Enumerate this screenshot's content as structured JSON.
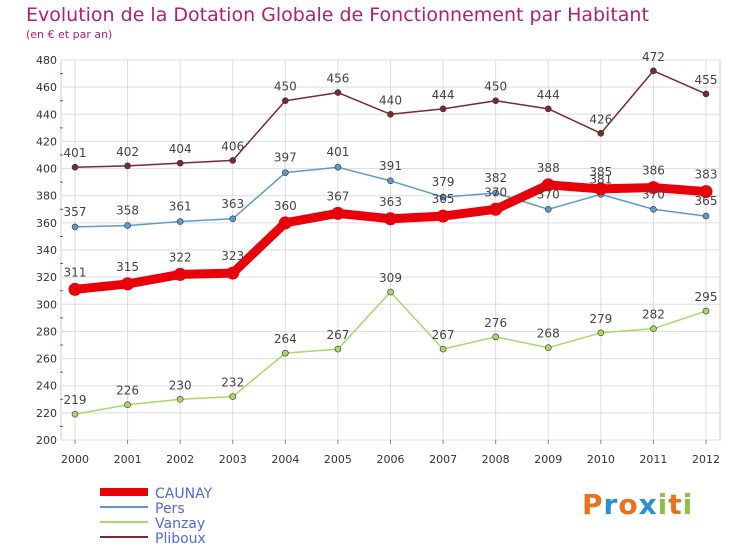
{
  "header": {
    "title": "Evolution de la Dotation Globale de Fonctionnement par Habitant",
    "subtitle": "(en € et par an)"
  },
  "logo": {
    "text": "Proxiti",
    "letters": [
      "P",
      "r",
      "o",
      "x",
      "i",
      "t",
      "i"
    ],
    "colors": [
      "#e8731c",
      "#2b8fd6",
      "#e8731c",
      "#2b8fd6",
      "#8bc43f",
      "#e8731c",
      "#8bc43f"
    ]
  },
  "chart_data": {
    "type": "line",
    "title": "Evolution de la Dotation Globale de Fonctionnement par Habitant",
    "subtitle": "(en € et par an)",
    "x": [
      "2000",
      "2001",
      "2002",
      "2003",
      "2004",
      "2005",
      "2006",
      "2007",
      "2008",
      "2009",
      "2010",
      "2011",
      "2012"
    ],
    "ylim": [
      200,
      480
    ],
    "yticks": [
      200,
      220,
      240,
      260,
      280,
      300,
      320,
      340,
      360,
      380,
      400,
      420,
      440,
      460,
      480
    ],
    "grid": true,
    "legend_position": "bottom-left",
    "series": [
      {
        "name": "CAUNAY",
        "color": "#e8000b",
        "emphasis": true,
        "values": [
          311,
          315,
          322,
          323,
          360,
          367,
          363,
          365,
          370,
          388,
          385,
          386,
          383
        ]
      },
      {
        "name": "Pers",
        "color": "#5b9bd1",
        "emphasis": false,
        "values": [
          357,
          358,
          361,
          363,
          397,
          401,
          391,
          379,
          382,
          370,
          381,
          370,
          365
        ]
      },
      {
        "name": "Vanzay",
        "color": "#a6d96a",
        "emphasis": false,
        "values": [
          219,
          226,
          230,
          232,
          264,
          267,
          309,
          267,
          276,
          268,
          279,
          282,
          295
        ]
      },
      {
        "name": "Pliboux",
        "color": "#7b2a30",
        "emphasis": false,
        "values": [
          401,
          402,
          404,
          406,
          450,
          456,
          440,
          444,
          450,
          444,
          426,
          472,
          455
        ]
      }
    ]
  }
}
